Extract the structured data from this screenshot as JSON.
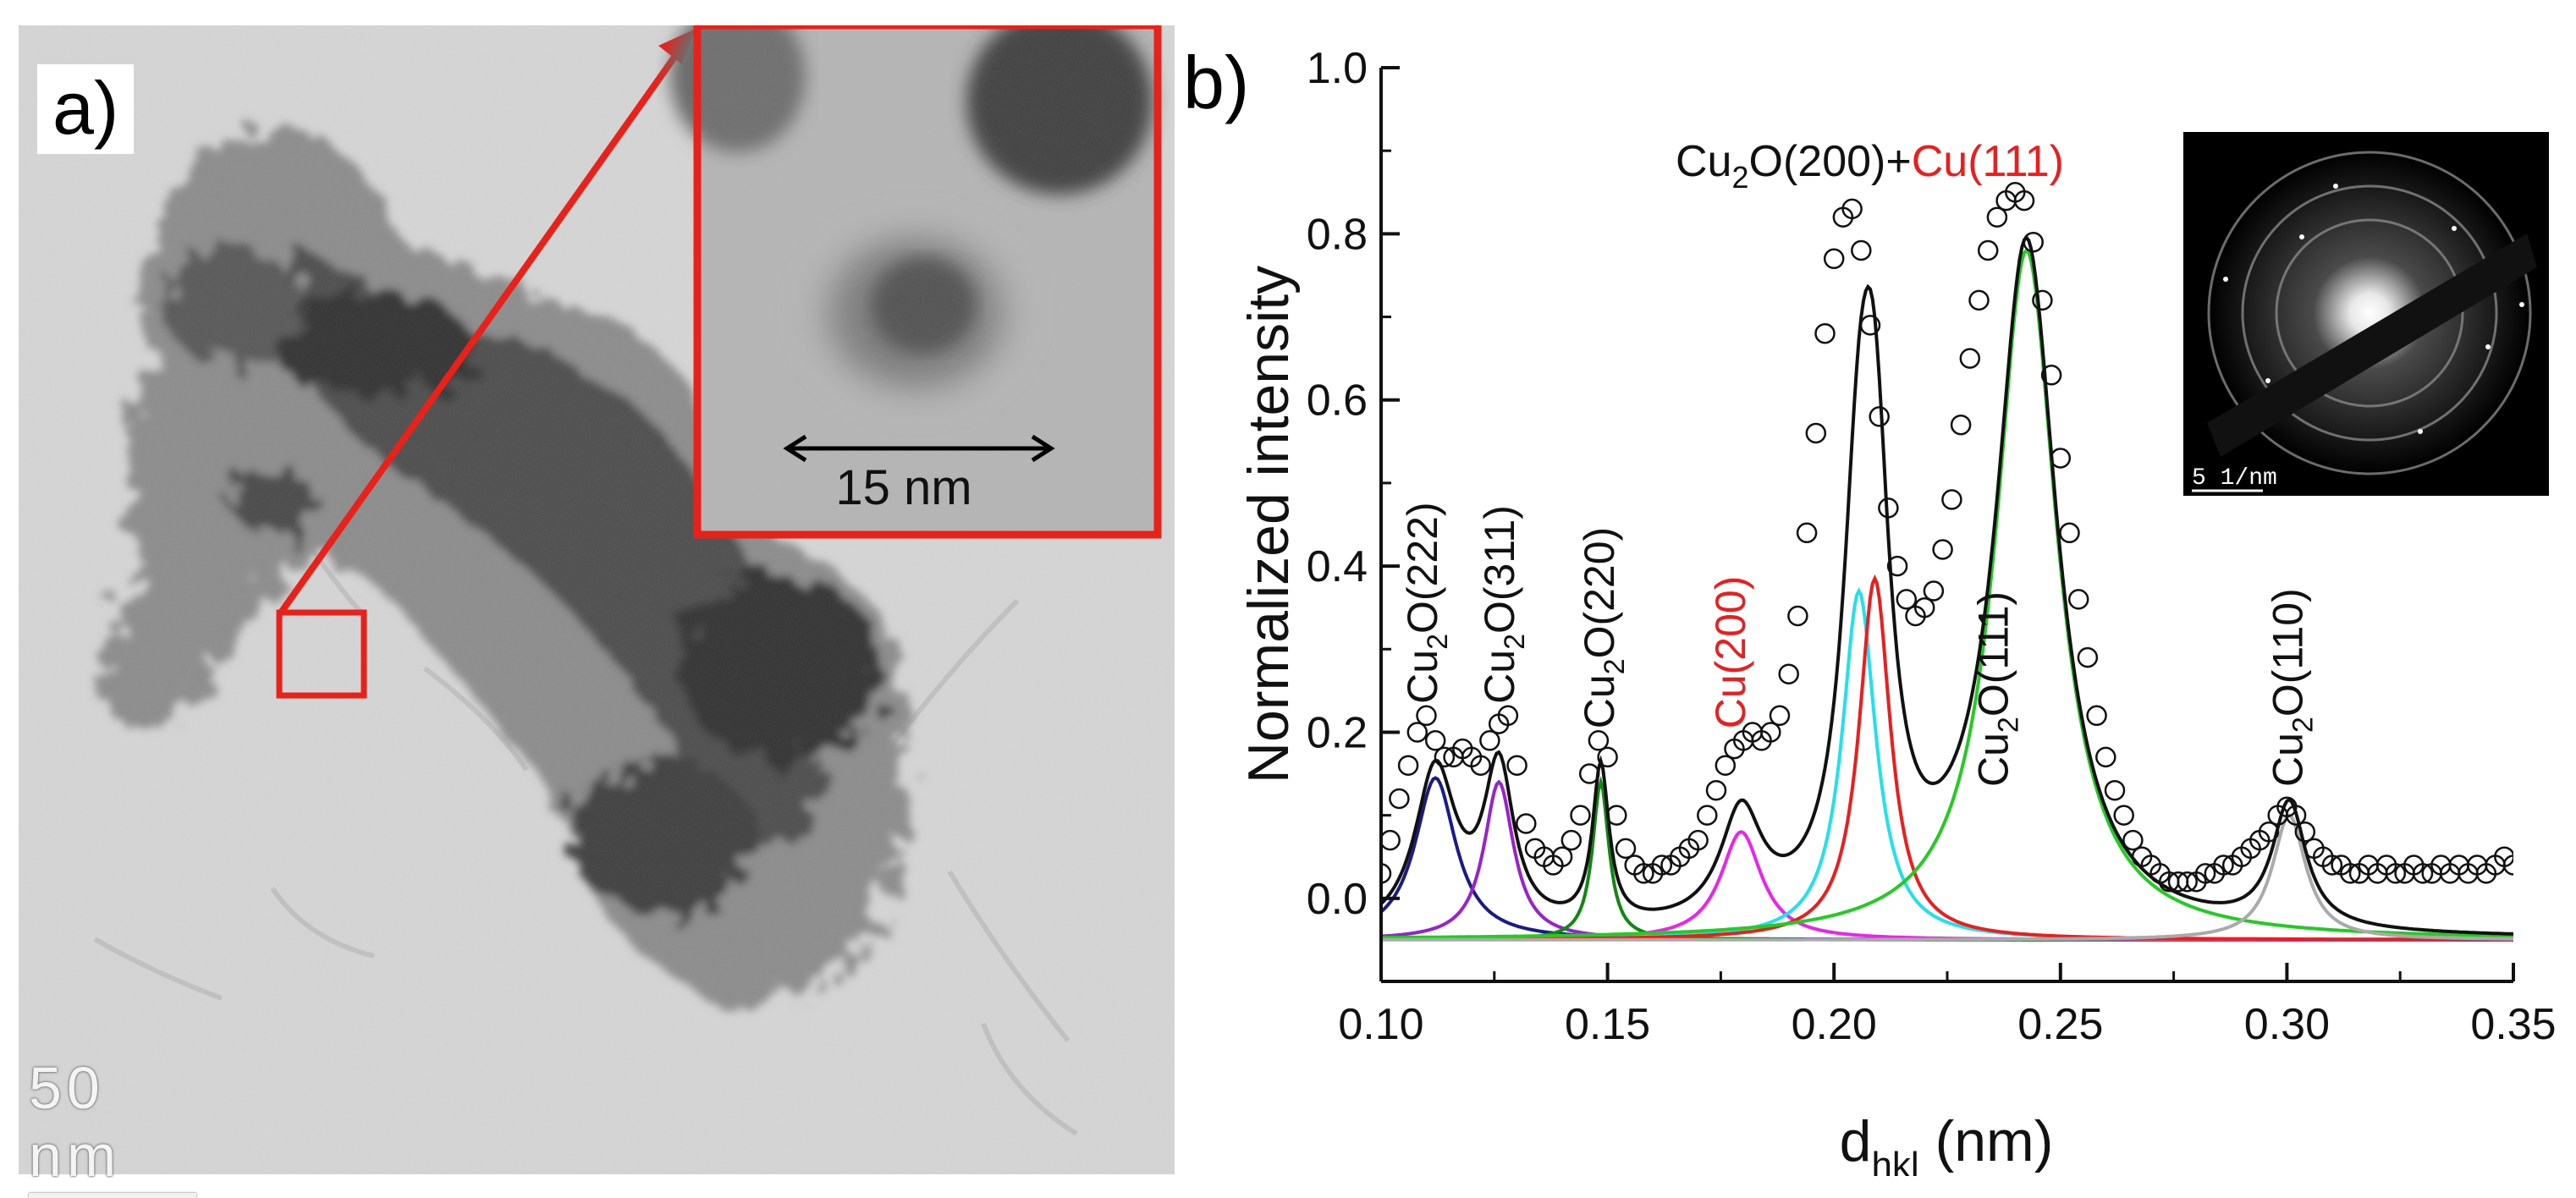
{
  "figure": {
    "panel_a": {
      "letter": "a)",
      "scale_bar_label": "50 nm",
      "inset_scale_label": "15 nm"
    },
    "panel_b": {
      "letter": "b)",
      "saed_scale_label": "5 1/nm"
    }
  },
  "colors": {
    "black": "#111111",
    "red": "#ee1c1c",
    "green": "#22cc22",
    "cyan": "#22e0ee",
    "magenta": "#ee22ee",
    "darkgreen": "#118811",
    "purple": "#9922cc",
    "navy": "#1a1a8c",
    "gray": "#aaaaaa",
    "inset_border": "#e8211b"
  },
  "chart_data": {
    "type": "line",
    "title": "",
    "xlabel": "d",
    "xlabel_sub": "hkl",
    "xlabel_unit": " (nm)",
    "ylabel": "Normalized intensity",
    "xlim": [
      0.1,
      0.35
    ],
    "ylim": [
      -0.1,
      1.0
    ],
    "x_ticks": [
      0.1,
      0.15,
      0.2,
      0.25,
      0.3,
      0.35
    ],
    "x_tick_labels": [
      "0.10",
      "0.15",
      "0.20",
      "0.25",
      "0.30",
      "0.35"
    ],
    "y_ticks": [
      0.0,
      0.2,
      0.4,
      0.6,
      0.8,
      1.0
    ],
    "y_tick_labels": [
      "0.0",
      "0.2",
      "0.4",
      "0.6",
      "0.8",
      "1.0"
    ],
    "baseline": -0.05,
    "components": [
      {
        "name": "Cu2O(222)",
        "center": 0.112,
        "height": 0.195,
        "width": 0.0055,
        "color": "navy"
      },
      {
        "name": "Cu2O(311)",
        "center": 0.126,
        "height": 0.19,
        "width": 0.004,
        "color": "purple"
      },
      {
        "name": "Cu2O(220)",
        "center": 0.1485,
        "height": 0.19,
        "width": 0.0022,
        "color": "darkgreen"
      },
      {
        "name": "Cu(200)",
        "center": 0.1795,
        "height": 0.13,
        "width": 0.0055,
        "color": "magenta"
      },
      {
        "name": "Cu2O(200)",
        "center": 0.2055,
        "height": 0.42,
        "width": 0.0045,
        "color": "cyan"
      },
      {
        "name": "Cu(111)",
        "center": 0.209,
        "height": 0.435,
        "width": 0.0042,
        "color": "red"
      },
      {
        "name": "Cu2O(111)",
        "center": 0.2425,
        "height": 0.83,
        "width": 0.0082,
        "color": "green"
      },
      {
        "name": "Cu2O(110)",
        "center": 0.3005,
        "height": 0.15,
        "width": 0.0045,
        "color": "gray"
      }
    ],
    "series": [
      {
        "name": "experimental",
        "marker": "open-circle",
        "x": [
          0.1,
          0.102,
          0.104,
          0.106,
          0.108,
          0.11,
          0.112,
          0.114,
          0.116,
          0.118,
          0.12,
          0.122,
          0.124,
          0.126,
          0.128,
          0.13,
          0.132,
          0.134,
          0.136,
          0.138,
          0.14,
          0.142,
          0.144,
          0.146,
          0.148,
          0.15,
          0.152,
          0.154,
          0.156,
          0.158,
          0.16,
          0.162,
          0.164,
          0.166,
          0.168,
          0.17,
          0.172,
          0.174,
          0.176,
          0.178,
          0.18,
          0.182,
          0.184,
          0.186,
          0.188,
          0.19,
          0.192,
          0.194,
          0.196,
          0.198,
          0.2,
          0.202,
          0.204,
          0.206,
          0.208,
          0.21,
          0.212,
          0.214,
          0.216,
          0.218,
          0.22,
          0.222,
          0.224,
          0.226,
          0.228,
          0.23,
          0.232,
          0.234,
          0.236,
          0.238,
          0.24,
          0.242,
          0.244,
          0.246,
          0.248,
          0.25,
          0.252,
          0.254,
          0.256,
          0.258,
          0.26,
          0.262,
          0.264,
          0.266,
          0.268,
          0.27,
          0.272,
          0.274,
          0.276,
          0.278,
          0.28,
          0.282,
          0.284,
          0.286,
          0.288,
          0.29,
          0.292,
          0.294,
          0.296,
          0.298,
          0.3,
          0.302,
          0.304,
          0.306,
          0.308,
          0.31,
          0.312,
          0.314,
          0.316,
          0.318,
          0.32,
          0.322,
          0.324,
          0.326,
          0.328,
          0.33,
          0.332,
          0.334,
          0.336,
          0.338,
          0.34,
          0.342,
          0.344,
          0.346,
          0.348,
          0.35
        ],
        "y": [
          0.03,
          0.07,
          0.12,
          0.16,
          0.2,
          0.22,
          0.19,
          0.17,
          0.17,
          0.18,
          0.17,
          0.16,
          0.19,
          0.21,
          0.22,
          0.16,
          0.09,
          0.06,
          0.05,
          0.04,
          0.05,
          0.07,
          0.1,
          0.15,
          0.19,
          0.17,
          0.1,
          0.06,
          0.04,
          0.03,
          0.03,
          0.04,
          0.04,
          0.05,
          0.06,
          0.07,
          0.1,
          0.13,
          0.16,
          0.18,
          0.19,
          0.2,
          0.19,
          0.2,
          0.22,
          0.27,
          0.34,
          0.44,
          0.56,
          0.68,
          0.77,
          0.82,
          0.83,
          0.78,
          0.69,
          0.58,
          0.47,
          0.4,
          0.36,
          0.34,
          0.35,
          0.37,
          0.42,
          0.48,
          0.57,
          0.65,
          0.72,
          0.78,
          0.82,
          0.84,
          0.85,
          0.84,
          0.79,
          0.72,
          0.63,
          0.53,
          0.44,
          0.36,
          0.29,
          0.22,
          0.17,
          0.13,
          0.1,
          0.07,
          0.05,
          0.04,
          0.03,
          0.02,
          0.02,
          0.02,
          0.02,
          0.03,
          0.03,
          0.04,
          0.04,
          0.05,
          0.06,
          0.07,
          0.08,
          0.1,
          0.11,
          0.1,
          0.08,
          0.06,
          0.05,
          0.04,
          0.04,
          0.03,
          0.03,
          0.04,
          0.03,
          0.04,
          0.03,
          0.03,
          0.04,
          0.03,
          0.03,
          0.04,
          0.03,
          0.04,
          0.03,
          0.04,
          0.03,
          0.04,
          0.05,
          0.04
        ]
      }
    ],
    "annotations": [
      {
        "id": "cu2o-222",
        "parts": [
          "Cu",
          "2",
          "O(222)"
        ],
        "x": 0.109,
        "y": 0.22,
        "rotate": true,
        "color": "black"
      },
      {
        "id": "cu2o-311",
        "parts": [
          "Cu",
          "2",
          "O(311)"
        ],
        "x": 0.126,
        "y": 0.22,
        "rotate": true,
        "color": "black"
      },
      {
        "id": "cu2o-220",
        "parts": [
          "Cu",
          "2",
          "O(220)"
        ],
        "x": 0.148,
        "y": 0.19,
        "rotate": true,
        "color": "black"
      },
      {
        "id": "cu-200",
        "parts": [
          "Cu(200)",
          "",
          ""
        ],
        "x": 0.177,
        "y": 0.19,
        "rotate": true,
        "color": "red"
      },
      {
        "id": "cu2o-111",
        "parts": [
          "Cu",
          "2",
          "O(111)"
        ],
        "x": 0.235,
        "y": 0.12,
        "rotate": true,
        "color": "black"
      },
      {
        "id": "cu2o-110",
        "parts": [
          "Cu",
          "2",
          "O(110)"
        ],
        "x": 0.3,
        "y": 0.12,
        "rotate": true,
        "color": "black"
      }
    ],
    "top_label": {
      "a": "Cu",
      "sub": "2",
      "b": "O(200)+",
      "c": "Cu(111)"
    }
  }
}
